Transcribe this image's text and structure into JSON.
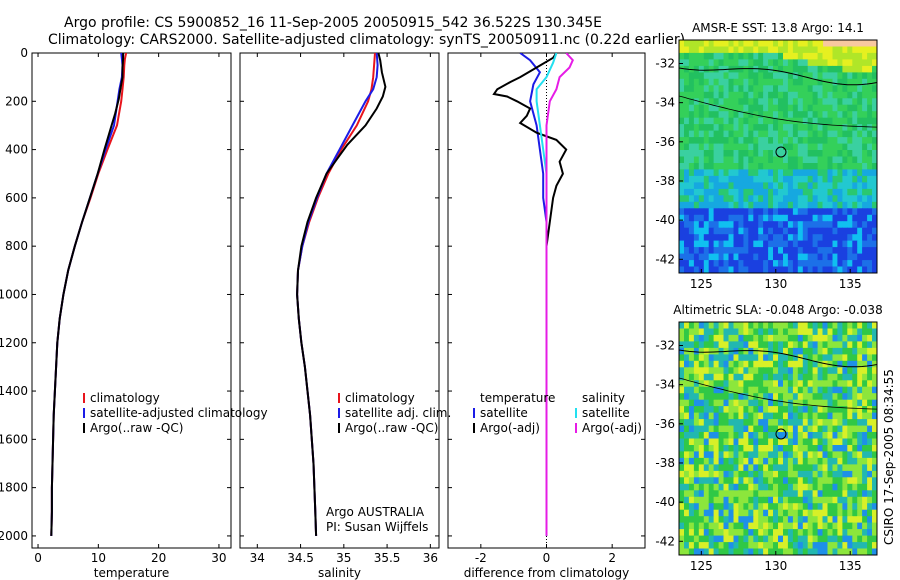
{
  "header": {
    "line1": "Argo profile: CS 5900852_16 11-Sep-2005 20050915_542 36.522S 130.345E",
    "line2": "Climatology: CARS2000. Satellite-adjusted climatology: synTS_20050911.nc (0.22d earlier)"
  },
  "side_label": "CSIRO 17-Sep-2005 08:34:55",
  "colors": {
    "red": "#e8141c",
    "blue": "#1c1ce6",
    "black": "#000000",
    "cyan": "#22e0f0",
    "magenta": "#e61ce6",
    "land": "#f8c8a0",
    "ocean_deep": "#0a1a78"
  },
  "chart_data": [
    {
      "id": "temperature",
      "type": "line",
      "xlabel": "temperature",
      "xlim": [
        -1,
        32
      ],
      "ylim": [
        0,
        2050
      ],
      "xticks": [
        0,
        10,
        20,
        30
      ],
      "yticks": [
        0,
        200,
        400,
        600,
        800,
        1000,
        1200,
        1400,
        1600,
        1800,
        2000
      ],
      "legend": [
        "climatology",
        "satellite-adjusted climatology",
        "Argo(..raw -QC)"
      ],
      "series": [
        {
          "name": "climatology",
          "color": "red",
          "points": [
            [
              14.6,
              0
            ],
            [
              14.4,
              25
            ],
            [
              14.3,
              50
            ],
            [
              14.2,
              100
            ],
            [
              14.0,
              150
            ],
            [
              13.8,
              200
            ],
            [
              13.1,
              300
            ],
            [
              11.5,
              400
            ],
            [
              10.0,
              500
            ],
            [
              8.7,
              600
            ],
            [
              7.3,
              700
            ],
            [
              6.1,
              800
            ],
            [
              5.0,
              900
            ],
            [
              4.2,
              1000
            ],
            [
              3.6,
              1100
            ],
            [
              3.2,
              1200
            ],
            [
              3.0,
              1300
            ],
            [
              2.8,
              1400
            ],
            [
              2.6,
              1500
            ],
            [
              2.5,
              1600
            ],
            [
              2.4,
              1700
            ],
            [
              2.3,
              1800
            ],
            [
              2.3,
              1900
            ],
            [
              2.2,
              2000
            ]
          ]
        },
        {
          "name": "satellite-adjusted climatology",
          "color": "blue",
          "points": [
            [
              13.8,
              0
            ],
            [
              13.9,
              25
            ],
            [
              14.0,
              50
            ],
            [
              13.9,
              100
            ],
            [
              13.5,
              150
            ],
            [
              13.2,
              200
            ],
            [
              12.6,
              300
            ],
            [
              11.2,
              400
            ],
            [
              9.9,
              500
            ],
            [
              8.6,
              600
            ],
            [
              7.3,
              700
            ],
            [
              6.1,
              800
            ],
            [
              5.0,
              900
            ],
            [
              4.2,
              1000
            ],
            [
              3.6,
              1100
            ],
            [
              3.2,
              1200
            ],
            [
              3.0,
              1300
            ],
            [
              2.8,
              1400
            ],
            [
              2.6,
              1500
            ],
            [
              2.5,
              1600
            ],
            [
              2.4,
              1700
            ],
            [
              2.3,
              1800
            ],
            [
              2.3,
              1900
            ],
            [
              2.2,
              2000
            ]
          ]
        },
        {
          "name": "Argo(..raw -QC)",
          "color": "black",
          "points": [
            [
              14.1,
              0
            ],
            [
              14.1,
              25
            ],
            [
              14.0,
              60
            ],
            [
              14.0,
              100
            ],
            [
              13.8,
              130
            ],
            [
              13.6,
              160
            ],
            [
              13.4,
              190
            ],
            [
              12.8,
              250
            ],
            [
              12.2,
              300
            ],
            [
              11.0,
              400
            ],
            [
              9.9,
              500
            ],
            [
              8.6,
              600
            ],
            [
              7.3,
              700
            ],
            [
              6.1,
              800
            ],
            [
              5.0,
              900
            ],
            [
              4.2,
              1000
            ],
            [
              3.6,
              1100
            ],
            [
              3.2,
              1200
            ],
            [
              3.0,
              1300
            ],
            [
              2.8,
              1400
            ],
            [
              2.6,
              1500
            ],
            [
              2.5,
              1600
            ],
            [
              2.4,
              1700
            ],
            [
              2.3,
              1800
            ],
            [
              2.3,
              1900
            ],
            [
              2.2,
              2000
            ]
          ]
        }
      ]
    },
    {
      "id": "salinity",
      "type": "line",
      "xlabel": "salinity",
      "xlim": [
        33.8,
        36.1
      ],
      "ylim": [
        0,
        2050
      ],
      "xticks": [
        34,
        34.5,
        35,
        35.5,
        36
      ],
      "xticklabels": [
        "34",
        "34.5",
        "35",
        "35.5",
        "36"
      ],
      "legend": [
        "climatology",
        "satellite adj. clim.",
        "Argo(..raw -QC)"
      ],
      "annotation": [
        "Argo AUSTRALIA",
        "PI: Susan Wijffels"
      ],
      "series": [
        {
          "name": "climatology",
          "color": "red",
          "points": [
            [
              35.36,
              0
            ],
            [
              35.35,
              50
            ],
            [
              35.34,
              100
            ],
            [
              35.32,
              150
            ],
            [
              35.28,
              200
            ],
            [
              35.15,
              300
            ],
            [
              34.97,
              400
            ],
            [
              34.82,
              500
            ],
            [
              34.7,
              600
            ],
            [
              34.6,
              700
            ],
            [
              34.52,
              800
            ],
            [
              34.47,
              900
            ],
            [
              34.46,
              1000
            ],
            [
              34.48,
              1100
            ],
            [
              34.51,
              1200
            ],
            [
              34.55,
              1300
            ],
            [
              34.58,
              1400
            ],
            [
              34.61,
              1500
            ],
            [
              34.63,
              1600
            ],
            [
              34.65,
              1700
            ],
            [
              34.66,
              1800
            ],
            [
              34.67,
              1900
            ],
            [
              34.68,
              2000
            ]
          ]
        },
        {
          "name": "satellite adj. clim.",
          "color": "blue",
          "points": [
            [
              35.38,
              0
            ],
            [
              35.39,
              50
            ],
            [
              35.38,
              100
            ],
            [
              35.34,
              150
            ],
            [
              35.25,
              200
            ],
            [
              35.1,
              300
            ],
            [
              34.95,
              400
            ],
            [
              34.8,
              500
            ],
            [
              34.69,
              600
            ],
            [
              34.59,
              700
            ],
            [
              34.52,
              800
            ],
            [
              34.47,
              900
            ],
            [
              34.46,
              1000
            ],
            [
              34.48,
              1100
            ],
            [
              34.51,
              1200
            ],
            [
              34.55,
              1300
            ],
            [
              34.58,
              1400
            ],
            [
              34.61,
              1500
            ],
            [
              34.63,
              1600
            ],
            [
              34.65,
              1700
            ],
            [
              34.66,
              1800
            ],
            [
              34.67,
              1900
            ],
            [
              34.68,
              2000
            ]
          ]
        },
        {
          "name": "Argo(..raw -QC)",
          "color": "black",
          "points": [
            [
              35.4,
              0
            ],
            [
              35.42,
              30
            ],
            [
              35.44,
              80
            ],
            [
              35.48,
              140
            ],
            [
              35.45,
              180
            ],
            [
              35.38,
              230
            ],
            [
              35.25,
              300
            ],
            [
              35.04,
              380
            ],
            [
              34.92,
              440
            ],
            [
              34.8,
              500
            ],
            [
              34.68,
              600
            ],
            [
              34.58,
              700
            ],
            [
              34.51,
              800
            ],
            [
              34.47,
              900
            ],
            [
              34.46,
              1000
            ],
            [
              34.48,
              1100
            ],
            [
              34.51,
              1200
            ],
            [
              34.55,
              1300
            ],
            [
              34.58,
              1400
            ],
            [
              34.61,
              1500
            ],
            [
              34.63,
              1600
            ],
            [
              34.65,
              1700
            ],
            [
              34.66,
              1800
            ],
            [
              34.67,
              1900
            ],
            [
              34.68,
              2000
            ]
          ]
        }
      ]
    },
    {
      "id": "difference",
      "type": "line",
      "xlabel": "difference from climatology",
      "xlim": [
        -3,
        3
      ],
      "ylim": [
        0,
        2050
      ],
      "xticks": [
        -2,
        0,
        2
      ],
      "legend_left": [
        "temperature",
        "satellite",
        "Argo(-adj)"
      ],
      "legend_right": [
        "salinity",
        "satellite",
        "Argo(-adj)"
      ],
      "series": [
        {
          "name": "temperature satellite",
          "color": "blue",
          "points": [
            [
              -0.8,
              0
            ],
            [
              -0.5,
              30
            ],
            [
              -0.2,
              80
            ],
            [
              -0.4,
              130
            ],
            [
              -0.5,
              200
            ],
            [
              -0.3,
              300
            ],
            [
              -0.2,
              400
            ],
            [
              -0.1,
              500
            ],
            [
              -0.1,
              600
            ],
            [
              0,
              700
            ],
            [
              0,
              800
            ],
            [
              0,
              1000
            ],
            [
              0,
              1200
            ],
            [
              0,
              1400
            ],
            [
              0,
              1600
            ],
            [
              0,
              1800
            ],
            [
              0,
              2000
            ]
          ]
        },
        {
          "name": "temperature Argo(-adj)",
          "color": "black",
          "points": [
            [
              0.3,
              0
            ],
            [
              0.2,
              20
            ],
            [
              -0.3,
              60
            ],
            [
              -0.8,
              100
            ],
            [
              -1.1,
              120
            ],
            [
              -1.5,
              150
            ],
            [
              -1.6,
              170
            ],
            [
              -1.2,
              180
            ],
            [
              -0.9,
              200
            ],
            [
              -0.5,
              230
            ],
            [
              -0.6,
              260
            ],
            [
              -0.8,
              290
            ],
            [
              -0.3,
              330
            ],
            [
              0.3,
              360
            ],
            [
              0.6,
              400
            ],
            [
              0.4,
              450
            ],
            [
              0.5,
              500
            ],
            [
              0.3,
              550
            ],
            [
              0.2,
              600
            ],
            [
              0.1,
              700
            ],
            [
              0,
              800
            ],
            [
              0,
              900
            ],
            [
              0,
              1000
            ],
            [
              0,
              1200
            ],
            [
              0,
              1400
            ],
            [
              0,
              1600
            ],
            [
              0,
              1800
            ],
            [
              0,
              2000
            ]
          ]
        },
        {
          "name": "salinity satellite",
          "color": "cyan",
          "points": [
            [
              0.3,
              0
            ],
            [
              0.2,
              40
            ],
            [
              0,
              100
            ],
            [
              -0.3,
              150
            ],
            [
              -0.3,
              200
            ],
            [
              -0.2,
              300
            ],
            [
              -0.1,
              400
            ],
            [
              0,
              500
            ],
            [
              0,
              700
            ],
            [
              0,
              900
            ],
            [
              0,
              1100
            ],
            [
              0,
              1300
            ],
            [
              0,
              1500
            ],
            [
              0,
              1700
            ],
            [
              0,
              1900
            ],
            [
              0,
              2000
            ]
          ]
        },
        {
          "name": "salinity Argo(-adj)",
          "color": "magenta",
          "points": [
            [
              0.6,
              0
            ],
            [
              0.8,
              30
            ],
            [
              0.7,
              60
            ],
            [
              0.4,
              100
            ],
            [
              0.3,
              150
            ],
            [
              0.1,
              200
            ],
            [
              0.0,
              300
            ],
            [
              0,
              400
            ],
            [
              0,
              500
            ],
            [
              0,
              700
            ],
            [
              0,
              900
            ],
            [
              0,
              1100
            ],
            [
              0,
              1300
            ],
            [
              0,
              1500
            ],
            [
              0,
              1700
            ],
            [
              0,
              1900
            ],
            [
              0,
              2000
            ]
          ]
        }
      ]
    },
    {
      "id": "sst_map",
      "type": "heatmap",
      "title": "AMSR-E SST: 13.8 Argo: 14.1",
      "xlim": [
        123.5,
        136.8
      ],
      "ylim": [
        -42.7,
        -30.8
      ],
      "xticks": [
        125,
        130,
        135
      ],
      "yticks": [
        -32,
        -34,
        -36,
        -38,
        -40,
        -42
      ],
      "marker": [
        130.35,
        -36.52
      ]
    },
    {
      "id": "sla_map",
      "type": "heatmap",
      "title": "Altimetric SLA: -0.048 Argo: -0.038",
      "xlim": [
        123.5,
        136.8
      ],
      "ylim": [
        -42.7,
        -30.8
      ],
      "xticks": [
        125,
        130,
        135
      ],
      "yticks": [
        -32,
        -34,
        -36,
        -38,
        -40,
        -42
      ],
      "marker": [
        130.35,
        -36.52
      ]
    }
  ]
}
